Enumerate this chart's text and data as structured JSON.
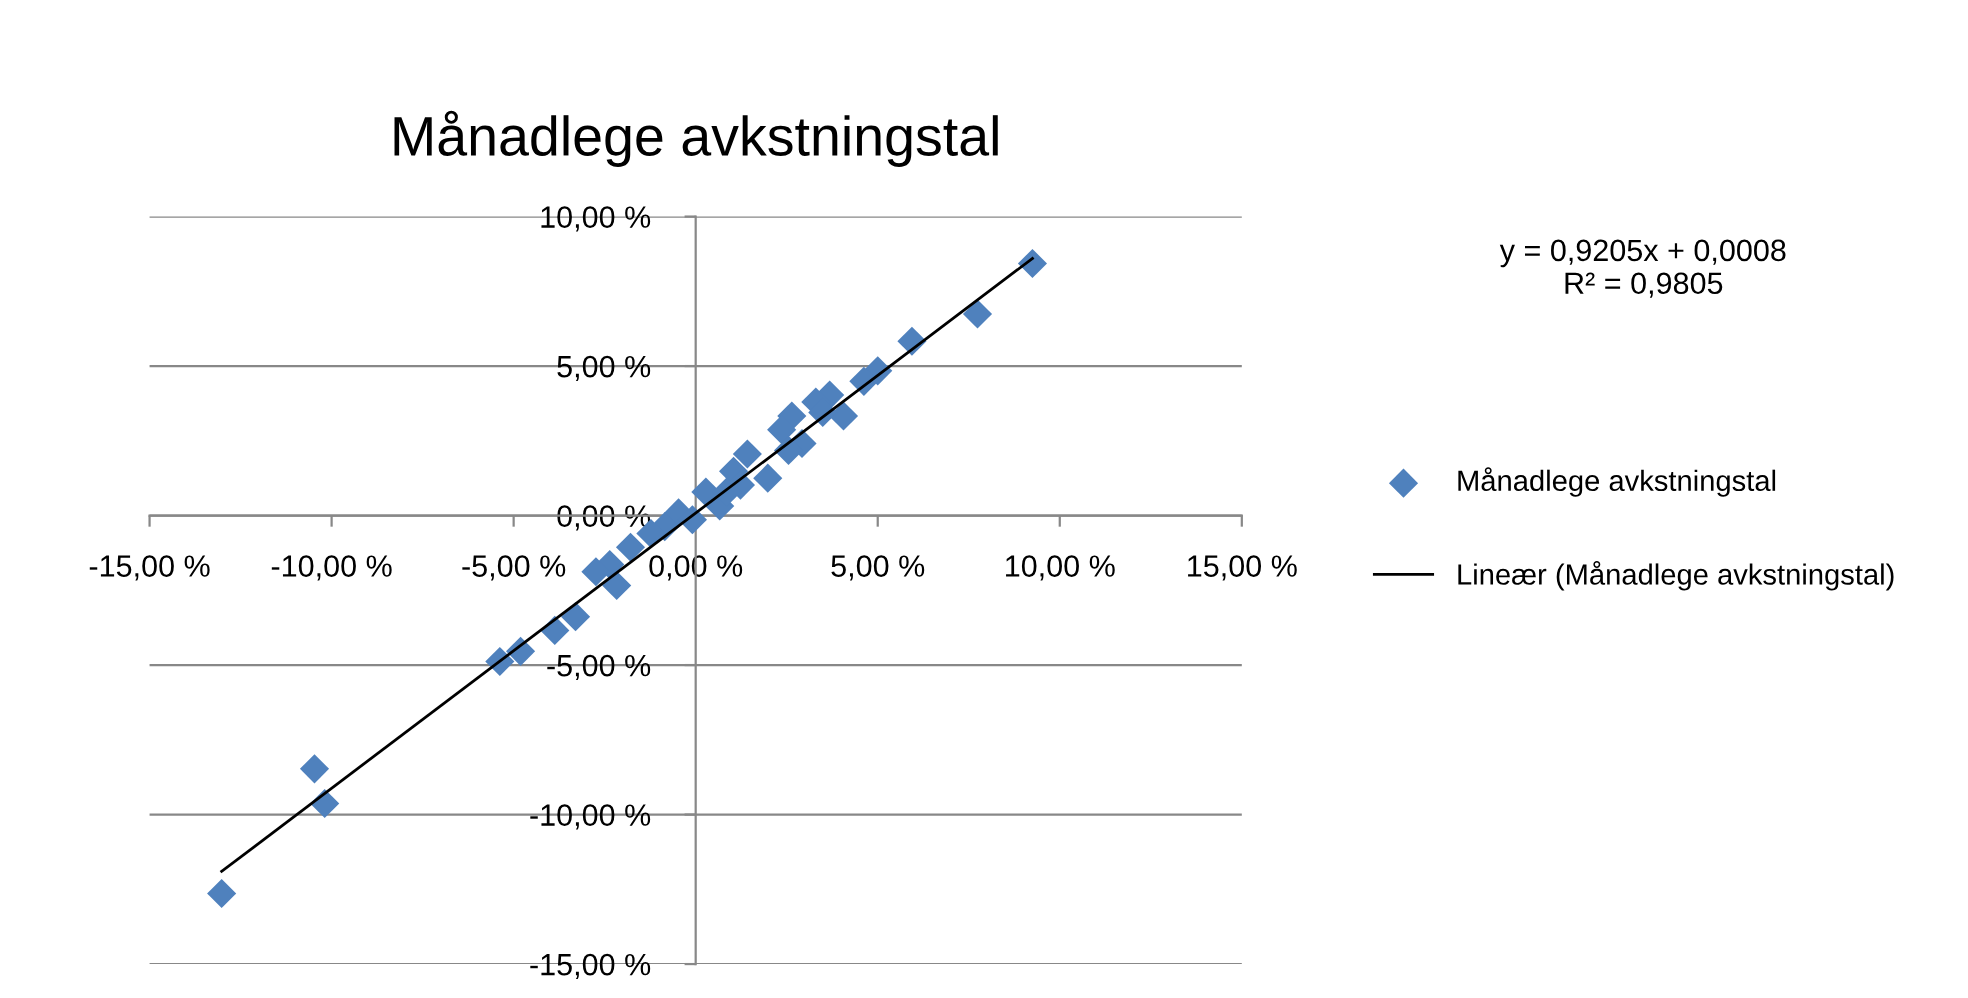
{
  "chart_data": {
    "type": "scatter",
    "title": "Månadlege avkstningstal",
    "xlim": [
      -15,
      15
    ],
    "ylim": [
      -15,
      10
    ],
    "xticks": [
      {
        "value": -15,
        "label": "-15,00 %"
      },
      {
        "value": -10,
        "label": "-10,00 %"
      },
      {
        "value": -5,
        "label": "-5,00 %"
      },
      {
        "value": 0,
        "label": "0,00 %"
      },
      {
        "value": 5,
        "label": "5,00 %"
      },
      {
        "value": 10,
        "label": "10,00 %"
      },
      {
        "value": 15,
        "label": "15,00 %"
      }
    ],
    "yticks": [
      {
        "value": -15,
        "label": "-15,00 %"
      },
      {
        "value": -10,
        "label": "-10,00 %"
      },
      {
        "value": -5,
        "label": "-5,00 %"
      },
      {
        "value": 0,
        "label": "0,00 %"
      },
      {
        "value": 5,
        "label": "5,00 %"
      },
      {
        "value": 10,
        "label": "10,00 %"
      }
    ],
    "grid": "y",
    "legend": "right",
    "annotations": [
      "y = 0,9205x + 0,0008\nR² = 0,9805"
    ],
    "series": [
      {
        "name": "Månadlege avkstningstal",
        "type": "scatter",
        "color": "#4f81bd",
        "marker": "diamond",
        "x": [
          9.25,
          7.74,
          5.94,
          5.0,
          4.62,
          3.68,
          4.06,
          3.3,
          2.64,
          2.92,
          2.36,
          1.42,
          1.98,
          1.04,
          0.66,
          0.28,
          -0.47,
          -0.85,
          -0.09,
          -1.79,
          -2.36,
          -2.17,
          -2.74,
          -3.3,
          -3.87,
          -4.81,
          -5.38,
          -10.47,
          -10.19,
          -13.02,
          -1.23,
          1.23,
          2.55,
          3.49,
          0.85
        ],
        "values": [
          8.43,
          6.74,
          5.83,
          4.84,
          4.49,
          4.03,
          3.33,
          3.8,
          3.33,
          2.41,
          2.87,
          2.06,
          1.25,
          1.48,
          0.32,
          0.79,
          0.09,
          -0.37,
          -0.14,
          -1.06,
          -1.64,
          -2.34,
          -1.88,
          -3.38,
          -3.84,
          -4.54,
          -4.88,
          -8.47,
          -9.63,
          -12.64,
          -0.6,
          1.02,
          2.18,
          3.45,
          0.79
        ]
      },
      {
        "name": "Lineær (Månadlege avkstningstal)",
        "type": "line",
        "color": "#000000",
        "marker": "none",
        "line_style": "solid",
        "x": [
          -13.02,
          9.25
        ],
        "values": [
          -11.9,
          8.6
        ]
      }
    ]
  }
}
